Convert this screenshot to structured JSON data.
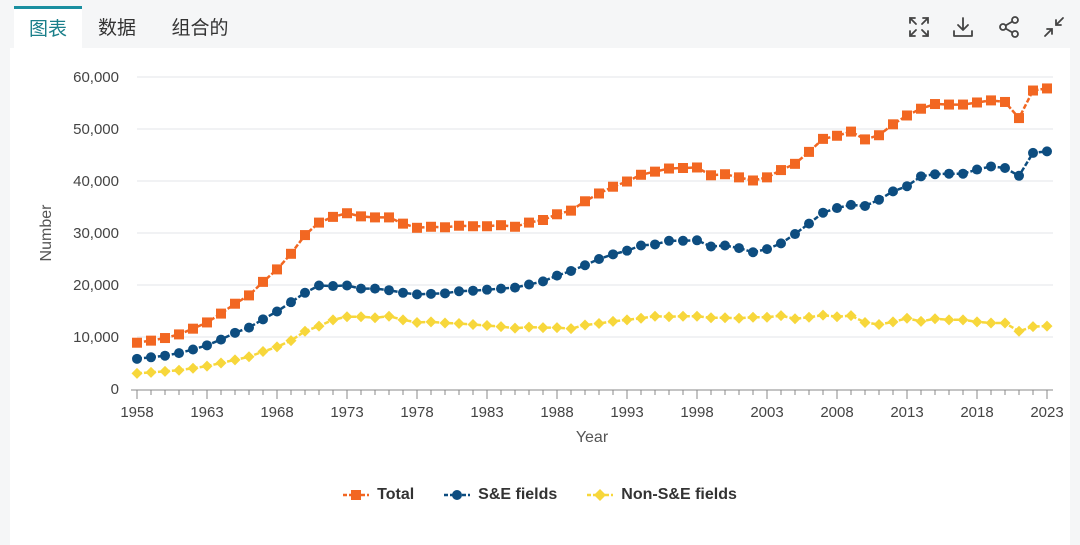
{
  "tabs": [
    {
      "label": "图表",
      "active": true
    },
    {
      "label": "数据",
      "active": false
    },
    {
      "label": "组合的",
      "active": false
    }
  ],
  "toolbar_icons": [
    "fullscreen-icon",
    "download-icon",
    "share-icon",
    "collapse-icon"
  ],
  "chart_data": {
    "type": "line",
    "title": "",
    "xlabel": "Year",
    "ylabel": "Number",
    "x": [
      1958,
      1959,
      1960,
      1961,
      1962,
      1963,
      1964,
      1965,
      1966,
      1967,
      1968,
      1969,
      1970,
      1971,
      1972,
      1973,
      1974,
      1975,
      1976,
      1977,
      1978,
      1979,
      1980,
      1981,
      1982,
      1983,
      1984,
      1985,
      1986,
      1987,
      1988,
      1989,
      1990,
      1991,
      1992,
      1993,
      1994,
      1995,
      1996,
      1997,
      1998,
      1999,
      2000,
      2001,
      2002,
      2003,
      2004,
      2005,
      2006,
      2007,
      2008,
      2009,
      2010,
      2011,
      2012,
      2013,
      2014,
      2015,
      2016,
      2017,
      2018,
      2019,
      2020,
      2021,
      2022,
      2023
    ],
    "xticks": [
      1958,
      1963,
      1968,
      1973,
      1978,
      1983,
      1988,
      1993,
      1998,
      2003,
      2008,
      2013,
      2018,
      2023
    ],
    "yticks": [
      0,
      10000,
      20000,
      30000,
      40000,
      50000,
      60000
    ],
    "ytick_labels": [
      "0",
      "10,000",
      "20,000",
      "30,000",
      "40,000",
      "50,000",
      "60,000"
    ],
    "ylim": [
      0,
      60000
    ],
    "xlim": [
      1958,
      2023
    ],
    "grid": "horizontal",
    "legend_position": "bottom",
    "series": [
      {
        "name": "Total",
        "color": "#f26722",
        "marker": "square",
        "values": [
          8900,
          9300,
          9800,
          10500,
          11600,
          12800,
          14500,
          16400,
          18000,
          20600,
          23000,
          26000,
          29600,
          32000,
          33100,
          33800,
          33200,
          33000,
          33000,
          31800,
          31000,
          31200,
          31100,
          31400,
          31300,
          31300,
          31500,
          31200,
          32000,
          32500,
          33600,
          34300,
          36100,
          37600,
          38900,
          39900,
          41200,
          41800,
          42400,
          42500,
          42600,
          41100,
          41300,
          40700,
          40100,
          40700,
          42100,
          43300,
          45600,
          48100,
          48700,
          49500,
          48000,
          48800,
          50900,
          52600,
          53900,
          54800,
          54700,
          54700,
          55100,
          55500,
          55200,
          52100,
          57400,
          57800
        ]
      },
      {
        "name": "S&E fields",
        "color": "#0d4d80",
        "marker": "circle",
        "values": [
          5800,
          6100,
          6400,
          6900,
          7600,
          8400,
          9500,
          10800,
          11800,
          13400,
          14900,
          16700,
          18500,
          19900,
          19800,
          19900,
          19300,
          19300,
          19000,
          18500,
          18200,
          18300,
          18400,
          18800,
          18900,
          19100,
          19300,
          19500,
          20100,
          20700,
          21800,
          22700,
          23800,
          25000,
          25900,
          26600,
          27600,
          27800,
          28500,
          28500,
          28600,
          27400,
          27600,
          27100,
          26300,
          26900,
          28000,
          29800,
          31800,
          33900,
          34800,
          35400,
          35200,
          36400,
          38000,
          39000,
          40900,
          41300,
          41400,
          41400,
          42200,
          42800,
          42500,
          41000,
          45400,
          45700
        ]
      },
      {
        "name": "Non-S&E fields",
        "color": "#f7d73b",
        "marker": "diamond",
        "values": [
          3000,
          3200,
          3400,
          3600,
          4000,
          4400,
          5000,
          5600,
          6200,
          7200,
          8100,
          9300,
          11100,
          12100,
          13300,
          13900,
          13900,
          13700,
          14000,
          13300,
          12800,
          12900,
          12700,
          12600,
          12400,
          12200,
          12000,
          11700,
          11900,
          11800,
          11800,
          11600,
          12300,
          12600,
          13000,
          13300,
          13600,
          14000,
          13900,
          14000,
          14000,
          13700,
          13700,
          13600,
          13800,
          13800,
          14100,
          13500,
          13800,
          14200,
          13900,
          14100,
          12800,
          12400,
          12900,
          13600,
          13000,
          13500,
          13300,
          13300,
          12900,
          12700,
          12700,
          11100,
          12000,
          12100
        ]
      }
    ]
  }
}
